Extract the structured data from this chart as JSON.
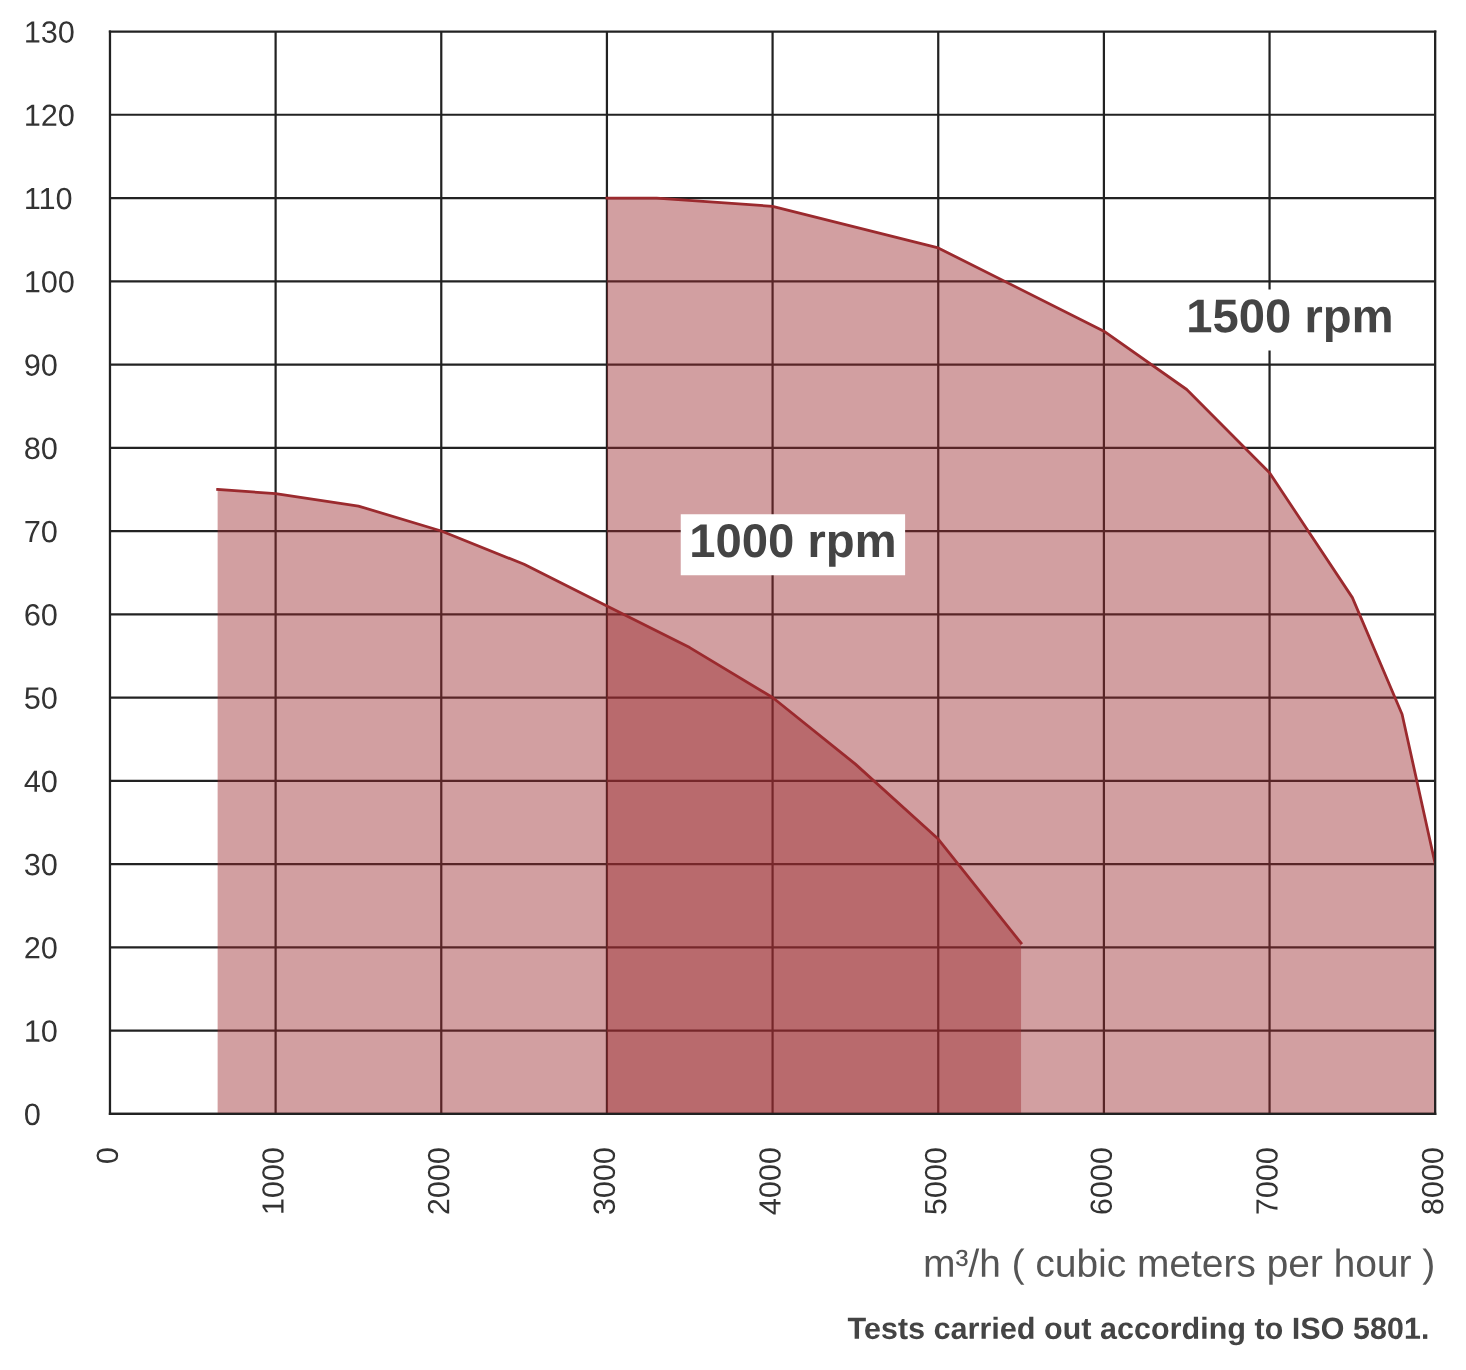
{
  "chart_data": {
    "type": "area",
    "xlabel": "m³/h ( cubic meters per hour )",
    "annotations": [
      "Tests carried out according to ISO 5801."
    ],
    "series": [
      {
        "name": "1000 rpm",
        "color": "#9b2a2e",
        "x": [
          650,
          1000,
          1500,
          2000,
          2500,
          3000,
          3500,
          4000,
          4500,
          5000,
          5500
        ],
        "values": [
          75,
          74.5,
          73,
          70,
          66,
          61,
          56,
          50,
          42,
          33,
          20.5
        ]
      },
      {
        "name": "1500 rpm",
        "color": "#9b2a2e",
        "x": [
          3000,
          3300,
          4000,
          5000,
          6000,
          6500,
          7000,
          7500,
          7800,
          8000
        ],
        "values": [
          110,
          110,
          109,
          104,
          94,
          87,
          77,
          62,
          48,
          30
        ]
      }
    ],
    "xlim": [
      0,
      8000
    ],
    "xticks": [
      0,
      1000,
      2000,
      3000,
      4000,
      5000,
      6000,
      7000,
      8000
    ],
    "ylim": [
      0,
      130
    ],
    "yticks": [
      0,
      10,
      20,
      30,
      40,
      50,
      60,
      70,
      80,
      90,
      100,
      110,
      120,
      130
    ],
    "grid": true,
    "legend": false
  }
}
